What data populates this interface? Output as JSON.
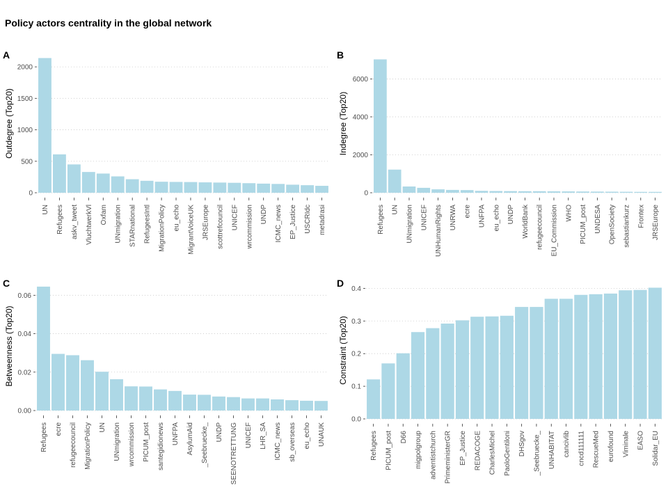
{
  "title": "Policy actors centrality in the global network",
  "chart_data": [
    {
      "panel": "A",
      "type": "bar",
      "ylabel": "Outdegree (Top20)",
      "ylim": [
        0,
        2200
      ],
      "yticks": [
        0,
        500,
        1000,
        1500,
        2000
      ],
      "categories": [
        "UN",
        "Refugees",
        "askv_tweet",
        "VluchtwerkVl",
        "Oxfam",
        "UNmigration",
        "STARnational",
        "RefugeesIntl",
        "MigrationPolicy",
        "eu_echo",
        "MigrantVoiceUK",
        "JRSEurope",
        "scottrefcouncil",
        "UNICEF",
        "wrcommission",
        "UNDP",
        "ICMC_news",
        "EP_Justice",
        "USCRIdc",
        "metadrasi"
      ],
      "values": [
        2140,
        610,
        450,
        330,
        305,
        260,
        215,
        190,
        175,
        172,
        170,
        165,
        162,
        158,
        152,
        145,
        140,
        128,
        120,
        110
      ],
      "grid": "horizontal"
    },
    {
      "panel": "B",
      "type": "bar",
      "ylabel": "Indegree (Top20)",
      "ylim": [
        0,
        7300
      ],
      "yticks": [
        0,
        2000,
        4000,
        6000
      ],
      "categories": [
        "Refugees",
        "UN",
        "UNmigration",
        "UNICEF",
        "UNHumanRights",
        "UNRWA",
        "ecre",
        "UNFPA",
        "eu_echo",
        "UNDP",
        "WorldBank",
        "refugeecouncil",
        "EU_Commission",
        "WHO",
        "PICUM_post",
        "UNDESA",
        "OpenSociety",
        "sebastiankurz",
        "Frontex",
        "JRSEurope"
      ],
      "values": [
        7030,
        1220,
        330,
        260,
        180,
        150,
        140,
        100,
        90,
        85,
        80,
        80,
        75,
        70,
        65,
        60,
        55,
        50,
        45,
        45
      ],
      "grid": "horizontal"
    },
    {
      "panel": "C",
      "type": "bar",
      "ylabel": "Betweenness (Top20)",
      "ylim": [
        0,
        0.067
      ],
      "yticks": [
        0.0,
        0.02,
        0.04,
        0.06
      ],
      "categories": [
        "Refugees",
        "ecre",
        "refugeecouncil",
        "MigrationPolicy",
        "UN",
        "UNmigration",
        "wrcommission",
        "PICUM_post",
        "santegidionews",
        "UNFPA",
        "AsylumAid",
        "_Seebruecke_",
        "UNDP",
        "SEENOTRETTUNG",
        "UNICEF",
        "LHR_SA",
        "ICMC_news",
        "sb_overseas",
        "eu_echo",
        "UNAUK"
      ],
      "values": [
        0.0645,
        0.0295,
        0.0288,
        0.0262,
        0.0202,
        0.0163,
        0.0126,
        0.0125,
        0.011,
        0.0102,
        0.0083,
        0.0082,
        0.0073,
        0.007,
        0.0063,
        0.0063,
        0.0058,
        0.0054,
        0.0051,
        0.005
      ],
      "grid": "horizontal"
    },
    {
      "panel": "D",
      "type": "bar",
      "ylabel": "Constraint (Top20)",
      "ylim": [
        0,
        0.42
      ],
      "yticks": [
        0.0,
        0.1,
        0.2,
        0.3,
        0.4
      ],
      "categories": [
        "Refugees",
        "PICUM_post",
        "D66",
        "migpolgroup",
        "adventistchurch",
        "PrimeministerGR",
        "EP_Justice",
        "REDACOGE",
        "CharlesMichel",
        "PaoloGentiloni",
        "DHSgov",
        "_Seebruecke_",
        "UNHABITAT",
        "cancivlib",
        "cncd111111",
        "RescueMed",
        "eurofound",
        "Viminale",
        "EASO",
        "Solidar_EU"
      ],
      "values": [
        0.121,
        0.17,
        0.201,
        0.266,
        0.278,
        0.292,
        0.302,
        0.313,
        0.314,
        0.316,
        0.343,
        0.343,
        0.368,
        0.368,
        0.38,
        0.382,
        0.384,
        0.394,
        0.395,
        0.402
      ],
      "grid": "horizontal"
    }
  ]
}
